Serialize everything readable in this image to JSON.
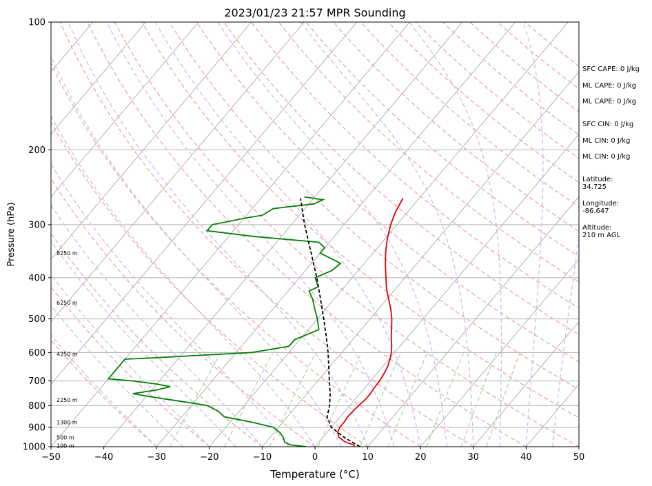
{
  "chart_data": {
    "type": "line",
    "title": "2023/01/23 21:57 MPR Sounding",
    "xlabel": "Temperature (°C)",
    "ylabel": "Pressure (hPa)",
    "xlim": [
      -50,
      50
    ],
    "ylim": [
      1000,
      100
    ],
    "y_scale": "log",
    "x_ticks": [
      "−50",
      "−40",
      "−30",
      "−20",
      "−10",
      "0",
      "10",
      "20",
      "30",
      "40",
      "50"
    ],
    "x_tick_values": [
      -50,
      -40,
      -30,
      -20,
      -10,
      0,
      10,
      20,
      30,
      40,
      50
    ],
    "y_ticks": [
      "100",
      "200",
      "300",
      "400",
      "500",
      "600",
      "700",
      "800",
      "900",
      "1000"
    ],
    "y_tick_values": [
      100,
      200,
      300,
      400,
      500,
      600,
      700,
      800,
      900,
      1000
    ],
    "grid": true,
    "series": [
      {
        "color": "#e00000",
        "points": [
          [
            1000,
            7.5
          ],
          [
            990,
            7.0
          ],
          [
            975,
            5.0
          ],
          [
            950,
            3.0
          ],
          [
            925,
            2.0
          ],
          [
            900,
            1.6
          ],
          [
            875,
            1.6
          ],
          [
            850,
            1.4
          ],
          [
            825,
            1.5
          ],
          [
            800,
            1.7
          ],
          [
            775,
            2.0
          ],
          [
            750,
            2.0
          ],
          [
            725,
            1.8
          ],
          [
            700,
            1.7
          ],
          [
            675,
            1.4
          ],
          [
            650,
            1.0
          ],
          [
            625,
            0.3
          ],
          [
            600,
            -0.6
          ],
          [
            575,
            -1.8
          ],
          [
            550,
            -3.2
          ],
          [
            525,
            -4.5
          ],
          [
            500,
            -5.9
          ],
          [
            475,
            -7.6
          ],
          [
            450,
            -9.6
          ],
          [
            425,
            -11.7
          ],
          [
            400,
            -13.6
          ],
          [
            375,
            -15.6
          ],
          [
            350,
            -17.6
          ],
          [
            325,
            -19.5
          ],
          [
            300,
            -21.2
          ],
          [
            280,
            -22.3
          ],
          [
            260,
            -23.1
          ]
        ]
      },
      {
        "color": "#008000",
        "points": [
          [
            1000,
            -1.6
          ],
          [
            990,
            -5.0
          ],
          [
            975,
            -6.5
          ],
          [
            950,
            -7.5
          ],
          [
            925,
            -9.0
          ],
          [
            900,
            -11.0
          ],
          [
            875,
            -16.0
          ],
          [
            850,
            -22.0
          ],
          [
            825,
            -24.0
          ],
          [
            800,
            -27.0
          ],
          [
            790,
            -30.0
          ],
          [
            775,
            -35.0
          ],
          [
            760,
            -40.0
          ],
          [
            750,
            -43.0
          ],
          [
            735,
            -39.0
          ],
          [
            722,
            -37.0
          ],
          [
            712,
            -40.0
          ],
          [
            700,
            -45.0
          ],
          [
            692,
            -50.0
          ],
          [
            622,
            -50.0
          ],
          [
            618,
            -45.0
          ],
          [
            600,
            -27.0
          ],
          [
            580,
            -21.0
          ],
          [
            560,
            -21.0
          ],
          [
            530,
            -18.0
          ],
          [
            500,
            -20.0
          ],
          [
            475,
            -22.0
          ],
          [
            450,
            -24.0
          ],
          [
            430,
            -26.0
          ],
          [
            420,
            -25.0
          ],
          [
            400,
            -27.0
          ],
          [
            385,
            -25.0
          ],
          [
            370,
            -24.5
          ],
          [
            350,
            -30.0
          ],
          [
            340,
            -30.0
          ],
          [
            330,
            -32.0
          ],
          [
            320,
            -45.0
          ],
          [
            310,
            -55.0
          ],
          [
            300,
            -55.0
          ],
          [
            290,
            -50.0
          ],
          [
            285,
            -47.0
          ],
          [
            275,
            -46.0
          ],
          [
            268,
            -39.0
          ],
          [
            262,
            -38.0
          ],
          [
            258,
            -42.0
          ]
        ]
      },
      {
        "color": "#000000",
        "style": "dashed",
        "points": [
          [
            1000,
            8.5
          ],
          [
            950,
            4.0
          ],
          [
            900,
            0.0
          ],
          [
            850,
            -2.5
          ],
          [
            800,
            -3.8
          ],
          [
            750,
            -5.6
          ],
          [
            700,
            -7.8
          ],
          [
            650,
            -10.1
          ],
          [
            600,
            -12.6
          ],
          [
            550,
            -15.5
          ],
          [
            500,
            -18.8
          ],
          [
            450,
            -22.5
          ],
          [
            400,
            -26.7
          ],
          [
            350,
            -31.7
          ],
          [
            300,
            -37.5
          ],
          [
            260,
            -42.5
          ]
        ]
      }
    ],
    "height_labels": [
      "100 m",
      "500 m",
      "1300 m",
      "2250 m",
      "4250 m",
      "6250 m",
      "8250 m"
    ],
    "height_label_pressures": [
      995,
      950,
      875,
      775,
      605,
      458,
      350
    ]
  },
  "sidebar": {
    "sfc_cape": "SFC CAPE: 0 J/kg",
    "ml_cape_1": "ML CAPE: 0 J/kg",
    "ml_cape_2": "ML CAPE: 0 J/kg",
    "sfc_cin": "SFC CIN: 0 J/kg",
    "ml_cin_1": "ML CIN: 0 J/kg",
    "ml_cin_2": "ML CIN: 0 J/kg",
    "latitude_label": "Latitude:",
    "latitude_value": "34.725",
    "longitude_label": "Longitude:",
    "longitude_value": "-86.647",
    "altitude_label": "Altitude:",
    "altitude_value": "210 m AGL"
  }
}
